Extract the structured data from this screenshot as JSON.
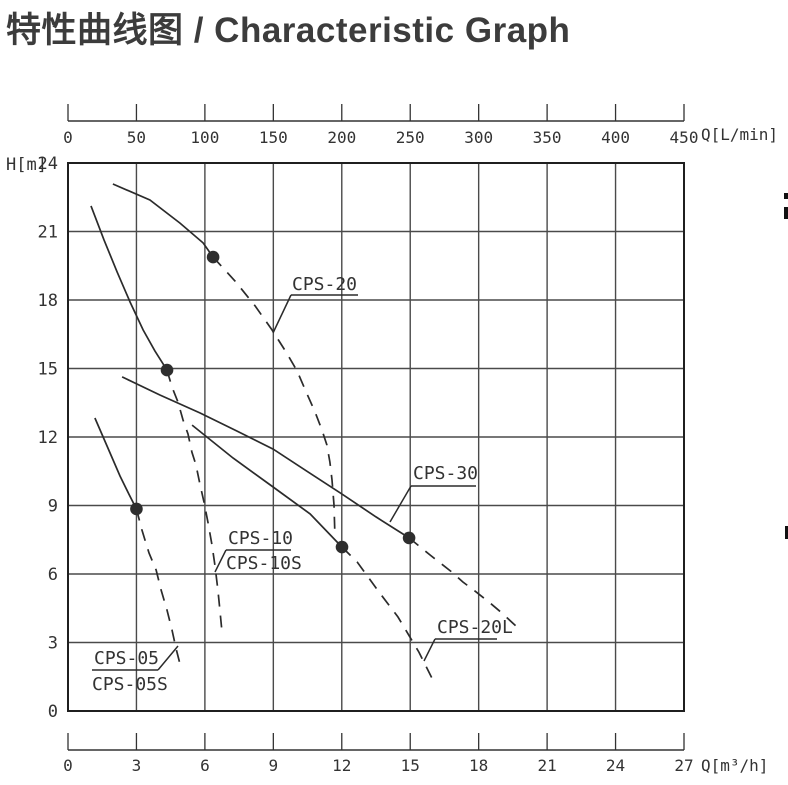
{
  "page": {
    "title": "特性曲线图 / Characteristic Graph"
  },
  "chart_data": {
    "type": "line",
    "title": "特性曲线图 / Characteristic Graph",
    "axes": {
      "top": {
        "label": "Q[L/min]",
        "range": [
          0,
          450
        ],
        "ticks": [
          0,
          50,
          100,
          150,
          200,
          250,
          300,
          350,
          400,
          450
        ]
      },
      "bottom": {
        "label": "Q[m³/h]",
        "range": [
          0,
          27
        ],
        "ticks": [
          0,
          3,
          6,
          9,
          12,
          15,
          18,
          21,
          24,
          27
        ]
      },
      "left": {
        "label": "H[m]",
        "range": [
          0,
          24
        ],
        "ticks": [
          24,
          21,
          18,
          15,
          12,
          9,
          6,
          3,
          0
        ]
      }
    },
    "grid": {
      "on": true,
      "x_step": 3,
      "y_step": 3
    },
    "series": [
      {
        "id": "cps20",
        "name": "CPS-20",
        "solid": [
          [
            1.97,
            23.08
          ],
          [
            3.59,
            22.38
          ],
          [
            4.91,
            21.37
          ],
          [
            5.92,
            20.5
          ],
          [
            6.36,
            19.88
          ]
        ],
        "dashed": [
          [
            6.36,
            19.88
          ],
          [
            7.32,
            18.83
          ],
          [
            8.2,
            17.74
          ],
          [
            8.94,
            16.69
          ],
          [
            9.56,
            15.72
          ],
          [
            10.04,
            14.89
          ],
          [
            10.48,
            13.88
          ],
          [
            10.83,
            13.09
          ],
          [
            11.13,
            12.31
          ],
          [
            11.35,
            11.65
          ],
          [
            11.48,
            10.9
          ],
          [
            11.57,
            10.12
          ],
          [
            11.66,
            9.02
          ],
          [
            11.7,
            7.71
          ]
        ],
        "marker": [
          6.36,
          19.88
        ]
      },
      {
        "id": "cps10",
        "name": "CPS-10 / CPS-10S",
        "solid": [
          [
            1.01,
            22.12
          ],
          [
            1.58,
            20.63
          ],
          [
            2.15,
            19.23
          ],
          [
            2.72,
            17.91
          ],
          [
            3.29,
            16.69
          ],
          [
            3.81,
            15.77
          ],
          [
            4.34,
            14.93
          ]
        ],
        "dashed": [
          [
            4.34,
            14.93
          ],
          [
            4.56,
            14.19
          ],
          [
            4.82,
            13.53
          ],
          [
            5.04,
            12.75
          ],
          [
            5.26,
            12.13
          ],
          [
            5.43,
            11.34
          ],
          [
            5.61,
            10.77
          ],
          [
            5.79,
            9.9
          ],
          [
            5.96,
            9.15
          ],
          [
            6.14,
            8.23
          ],
          [
            6.31,
            7.27
          ],
          [
            6.44,
            6.39
          ],
          [
            6.57,
            5.3
          ],
          [
            6.66,
            4.42
          ],
          [
            6.75,
            3.46
          ]
        ],
        "marker": [
          4.34,
          14.93
        ]
      },
      {
        "id": "cps05",
        "name": "CPS-05 / CPS-05S",
        "solid": [
          [
            1.18,
            12.83
          ],
          [
            1.75,
            11.52
          ],
          [
            2.28,
            10.29
          ],
          [
            2.67,
            9.5
          ],
          [
            3.0,
            8.85
          ]
        ],
        "dashed": [
          [
            3.0,
            8.85
          ],
          [
            3.24,
            7.93
          ],
          [
            3.55,
            6.92
          ],
          [
            3.86,
            6.18
          ],
          [
            4.08,
            5.3
          ],
          [
            4.34,
            4.42
          ],
          [
            4.56,
            3.55
          ],
          [
            4.73,
            2.76
          ],
          [
            4.91,
            2.06
          ]
        ],
        "marker": [
          3.0,
          8.85
        ]
      },
      {
        "id": "cps30",
        "name": "CPS-30",
        "solid": [
          [
            2.37,
            14.63
          ],
          [
            4.03,
            13.84
          ],
          [
            5.79,
            13.05
          ],
          [
            7.41,
            12.26
          ],
          [
            8.99,
            11.47
          ],
          [
            10.52,
            10.47
          ],
          [
            12.01,
            9.5
          ],
          [
            13.5,
            8.5
          ],
          [
            14.95,
            7.58
          ]
        ],
        "dashed": [
          [
            14.95,
            7.58
          ],
          [
            15.87,
            6.83
          ],
          [
            16.83,
            6.08
          ],
          [
            17.31,
            5.65
          ],
          [
            17.84,
            5.25
          ],
          [
            18.5,
            4.73
          ],
          [
            19.02,
            4.29
          ],
          [
            19.68,
            3.68
          ]
        ],
        "marker": [
          14.95,
          7.58
        ]
      },
      {
        "id": "cps20l",
        "name": "CPS-20L",
        "solid": [
          [
            5.44,
            12.52
          ],
          [
            7.23,
            11.08
          ],
          [
            8.99,
            9.81
          ],
          [
            10.61,
            8.63
          ],
          [
            12.01,
            7.18
          ]
        ],
        "dashed": [
          [
            12.01,
            7.18
          ],
          [
            12.67,
            6.53
          ],
          [
            13.63,
            5.21
          ],
          [
            14.46,
            4.12
          ],
          [
            15.38,
            2.58
          ],
          [
            16.04,
            1.27
          ]
        ],
        "marker": [
          12.01,
          7.18
        ]
      }
    ],
    "callouts": [
      {
        "id": "cps20",
        "lines": [
          "CPS-20"
        ]
      },
      {
        "id": "cps30",
        "lines": [
          "CPS-30"
        ]
      },
      {
        "id": "cps10",
        "lines": [
          "CPS-10",
          "CPS-10S"
        ]
      },
      {
        "id": "cps05",
        "lines": [
          "CPS-05",
          "CPS-05S"
        ]
      },
      {
        "id": "cps20l",
        "lines": [
          "CPS-20L"
        ]
      }
    ],
    "colors": {
      "curve": "#2b2b2b",
      "grid": "#4a4a4a",
      "border": "#1f1f1f",
      "marker": "#2e2e2e",
      "text": "#333333",
      "title": "#3c3c3c"
    },
    "legend_position": "none"
  }
}
